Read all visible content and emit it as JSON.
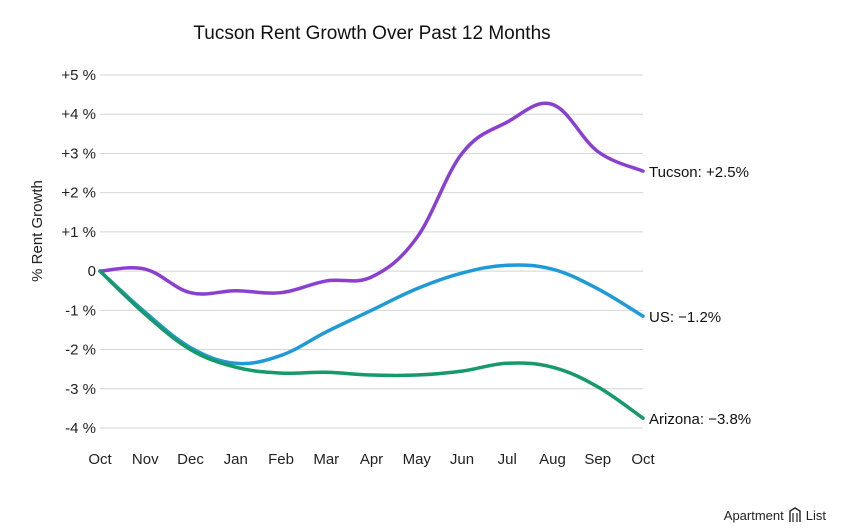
{
  "chart_data": {
    "type": "line",
    "title": "Tucson Rent Growth Over Past 12 Months",
    "xlabel": "",
    "ylabel": "% Rent Growth",
    "categories": [
      "Oct",
      "Nov",
      "Dec",
      "Jan",
      "Feb",
      "Mar",
      "Apr",
      "May",
      "Jun",
      "Jul",
      "Aug",
      "Sep",
      "Oct"
    ],
    "ylim": [
      -4,
      5
    ],
    "yticks": [
      {
        "value": 5,
        "label": "+5 %"
      },
      {
        "value": 4,
        "label": "+4 %"
      },
      {
        "value": 3,
        "label": "+3 %"
      },
      {
        "value": 2,
        "label": "+2 %"
      },
      {
        "value": 1,
        "label": "+1 %"
      },
      {
        "value": 0,
        "label": "0"
      },
      {
        "value": -1,
        "label": "-1 %"
      },
      {
        "value": -2,
        "label": "-2 %"
      },
      {
        "value": -3,
        "label": "-3 %"
      },
      {
        "value": -4,
        "label": "-4 %"
      }
    ],
    "grid": true,
    "series": [
      {
        "name": "Tucson",
        "end_label": "Tucson: +2.5%",
        "color": "#8a3fd1",
        "values": [
          0,
          0.05,
          -0.55,
          -0.5,
          -0.55,
          -0.25,
          -0.15,
          0.85,
          3.0,
          3.8,
          4.25,
          3.05,
          2.55
        ]
      },
      {
        "name": "US",
        "end_label": "US: −1.2%",
        "color": "#1e9ad6",
        "values": [
          0,
          -1.05,
          -1.95,
          -2.35,
          -2.15,
          -1.55,
          -1.0,
          -0.45,
          -0.05,
          0.15,
          0.05,
          -0.45,
          -1.15
        ]
      },
      {
        "name": "Arizona",
        "end_label": "Arizona: −3.8%",
        "color": "#16996b",
        "values": [
          0,
          -1.1,
          -2.0,
          -2.45,
          -2.6,
          -2.58,
          -2.65,
          -2.65,
          -2.55,
          -2.35,
          -2.45,
          -2.95,
          -3.75
        ]
      }
    ]
  },
  "branding": {
    "logo_text": "Apartment",
    "logo_text_2": "List"
  }
}
